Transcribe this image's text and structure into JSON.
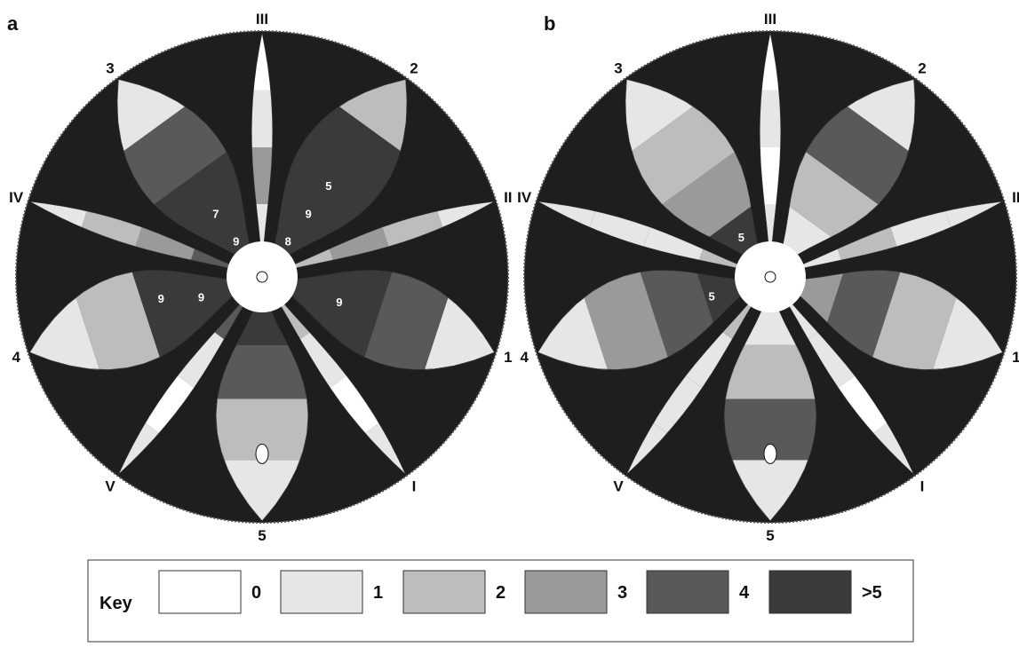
{
  "panels": [
    {
      "id": "a",
      "letter": "a",
      "rays": [
        {
          "label": "III",
          "angle": 0,
          "reach": "long",
          "bands": [
            1,
            3,
            1,
            0
          ]
        },
        {
          "label": "2",
          "angle": 36,
          "reach": "short",
          "bands": [
            5,
            5,
            5,
            2
          ]
        },
        {
          "label": "II",
          "angle": 72,
          "reach": "long",
          "bands": [
            2,
            3,
            2,
            1
          ]
        },
        {
          "label": "1",
          "angle": 108,
          "reach": "short",
          "bands": [
            5,
            5,
            4,
            1
          ]
        },
        {
          "label": "I",
          "angle": 144,
          "reach": "long",
          "bands": [
            2,
            1,
            0,
            1
          ]
        },
        {
          "label": "5",
          "angle": 180,
          "reach": "short",
          "bands": [
            5,
            4,
            2,
            1
          ]
        },
        {
          "label": "V",
          "angle": 216,
          "reach": "long",
          "bands": [
            4,
            1,
            0,
            1
          ]
        },
        {
          "label": "4",
          "angle": 252,
          "reach": "short",
          "bands": [
            5,
            5,
            2,
            1
          ]
        },
        {
          "label": "IV",
          "angle": 288,
          "reach": "long",
          "bands": [
            4,
            3,
            2,
            1
          ]
        },
        {
          "label": "3",
          "angle": 324,
          "reach": "short",
          "bands": [
            5,
            5,
            4,
            1
          ]
        }
      ],
      "values": [
        {
          "text": "5",
          "angle": 36,
          "frac": 0.46
        },
        {
          "text": "9",
          "angle": 36,
          "frac": 0.32
        },
        {
          "text": "8",
          "angle": 36,
          "frac": 0.18
        },
        {
          "text": "7",
          "angle": 324,
          "frac": 0.32
        },
        {
          "text": "9",
          "angle": 324,
          "frac": 0.18
        },
        {
          "text": "9",
          "angle": 108,
          "frac": 0.33
        },
        {
          "text": "9",
          "angle": 252,
          "frac": 0.26
        },
        {
          "text": "9",
          "angle": 258,
          "frac": 0.42
        }
      ]
    },
    {
      "id": "b",
      "letter": "b",
      "rays": [
        {
          "label": "III",
          "angle": 0,
          "reach": "long",
          "bands": [
            1,
            0,
            1,
            0
          ]
        },
        {
          "label": "2",
          "angle": 36,
          "reach": "short",
          "bands": [
            1,
            2,
            4,
            1
          ]
        },
        {
          "label": "II",
          "angle": 72,
          "reach": "long",
          "bands": [
            1,
            2,
            1,
            1
          ]
        },
        {
          "label": "1",
          "angle": 108,
          "reach": "short",
          "bands": [
            3,
            4,
            2,
            1
          ]
        },
        {
          "label": "I",
          "angle": 144,
          "reach": "long",
          "bands": [
            1,
            1,
            0,
            1
          ]
        },
        {
          "label": "5",
          "angle": 180,
          "reach": "short",
          "bands": [
            1,
            2,
            4,
            1
          ]
        },
        {
          "label": "V",
          "angle": 216,
          "reach": "long",
          "bands": [
            2,
            1,
            1,
            1
          ]
        },
        {
          "label": "4",
          "angle": 252,
          "reach": "short",
          "bands": [
            5,
            4,
            3,
            1
          ]
        },
        {
          "label": "IV",
          "angle": 288,
          "reach": "long",
          "bands": [
            2,
            1,
            1,
            1
          ]
        },
        {
          "label": "3",
          "angle": 324,
          "reach": "short",
          "bands": [
            5,
            3,
            2,
            1
          ]
        }
      ],
      "values": [
        {
          "text": "5",
          "angle": 324,
          "frac": 0.2
        },
        {
          "text": "5",
          "angle": 252,
          "frac": 0.25
        }
      ]
    }
  ],
  "key": {
    "title": "Key",
    "items": [
      {
        "label": "0",
        "level": 0,
        "color": "#ffffff"
      },
      {
        "label": "1",
        "level": 1,
        "color": "#e6e6e6"
      },
      {
        "label": "2",
        "level": 2,
        "color": "#bdbdbd"
      },
      {
        "label": "3",
        "level": 3,
        "color": "#9a9a9a"
      },
      {
        "label": "4",
        "level": 4,
        "color": "#595959"
      },
      {
        "label": ">5",
        "level": 5,
        "color": "#3a3a3a"
      }
    ]
  },
  "colors": {
    "background_disc": "#1e1e1e",
    "stroke": "#111111"
  }
}
